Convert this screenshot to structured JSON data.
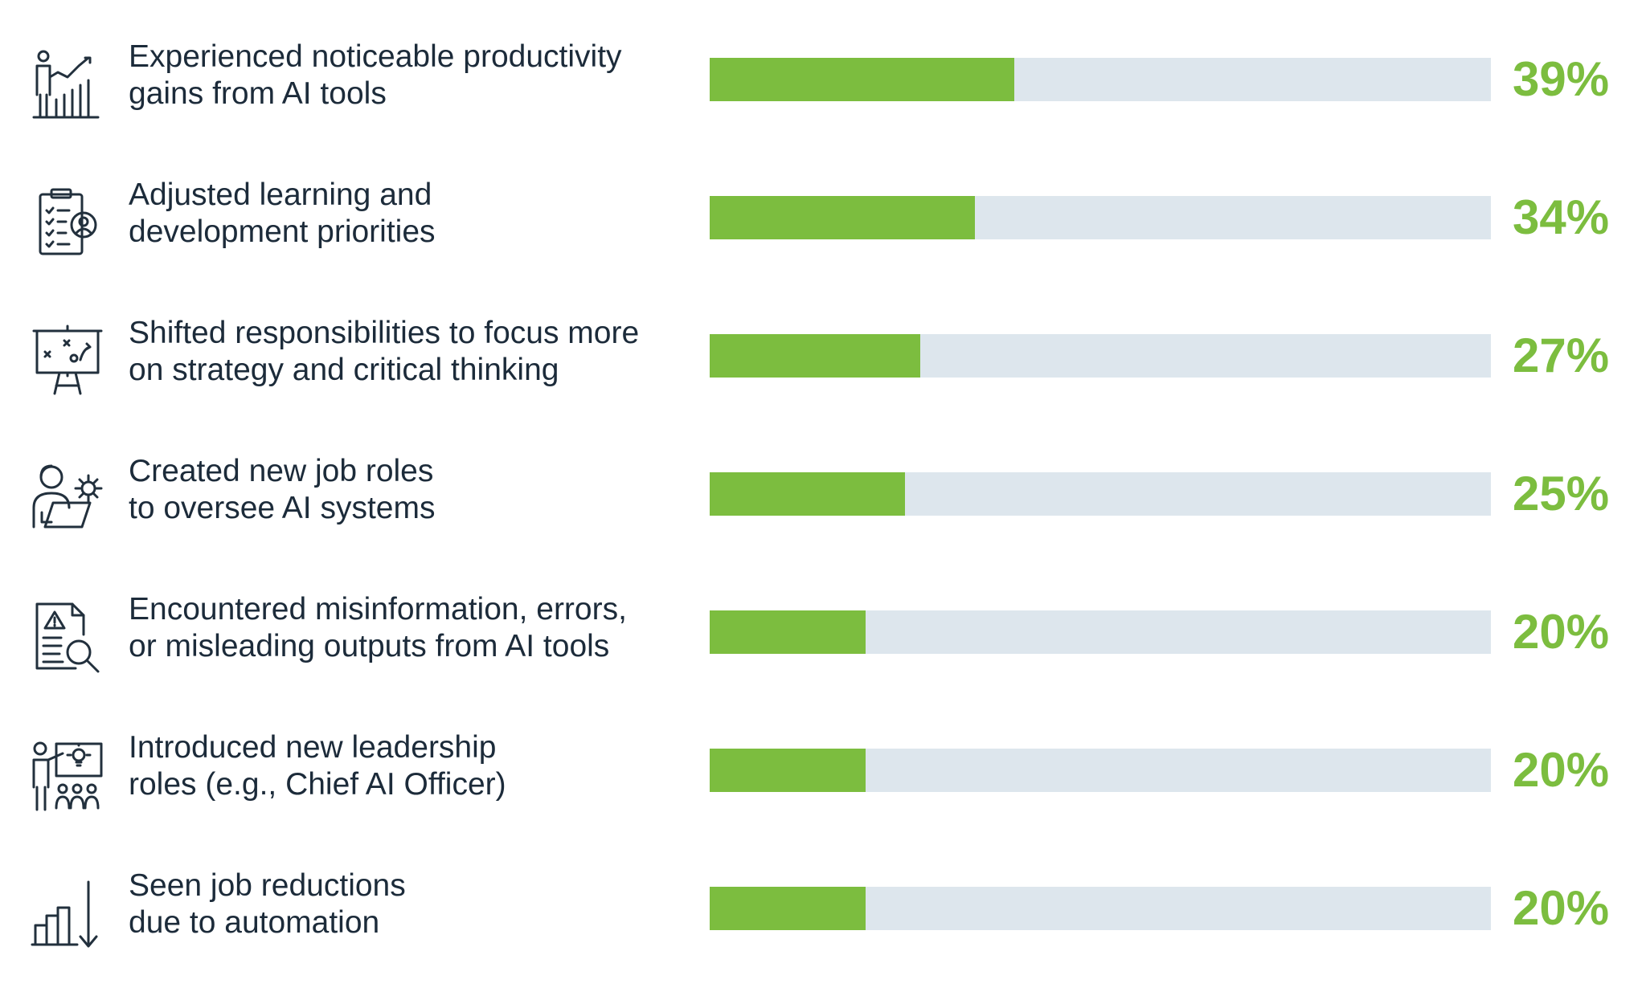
{
  "chart_data": {
    "type": "bar",
    "orientation": "horizontal",
    "categories": [
      "Experienced noticeable productivity gains from AI tools",
      "Adjusted learning and development priorities",
      "Shifted responsibilities to focus more on strategy and critical thinking",
      "Created new job roles to oversee AI systems",
      "Encountered misinformation, errors, or misleading outputs from AI tools",
      "Introduced new leadership roles (e.g., Chief AI Officer)",
      "Seen job reductions due to automation"
    ],
    "values": [
      39,
      34,
      27,
      25,
      20,
      20,
      20
    ],
    "value_labels": [
      "39%",
      "34%",
      "27%",
      "25%",
      "20%",
      "20%",
      "20%"
    ],
    "xlim": [
      0,
      100
    ],
    "colors": {
      "bar": "#7cbd3f",
      "track": "#dde6ed",
      "label": "#1c2b3a",
      "value": "#7cbd3f"
    }
  },
  "rows": [
    {
      "icon": "productivity-chart-icon",
      "lines": [
        "Experienced noticeable productivity",
        "gains from AI tools"
      ]
    },
    {
      "icon": "clipboard-checklist-person-icon",
      "lines": [
        "Adjusted learning and",
        "development priorities"
      ]
    },
    {
      "icon": "strategy-board-icon",
      "lines": [
        "Shifted responsibilities to focus more",
        "on strategy and critical thinking"
      ]
    },
    {
      "icon": "person-laptop-gear-icon",
      "lines": [
        "Created new job roles",
        "to oversee AI systems"
      ]
    },
    {
      "icon": "document-warning-magnifier-icon",
      "lines": [
        "Encountered misinformation, errors,",
        "or misleading outputs from AI tools"
      ]
    },
    {
      "icon": "presenter-team-idea-icon",
      "lines": [
        "Introduced new leadership",
        "roles (e.g., Chief AI Officer)"
      ]
    },
    {
      "icon": "declining-bars-arrow-icon",
      "lines": [
        "Seen job reductions",
        "due to automation"
      ]
    }
  ]
}
